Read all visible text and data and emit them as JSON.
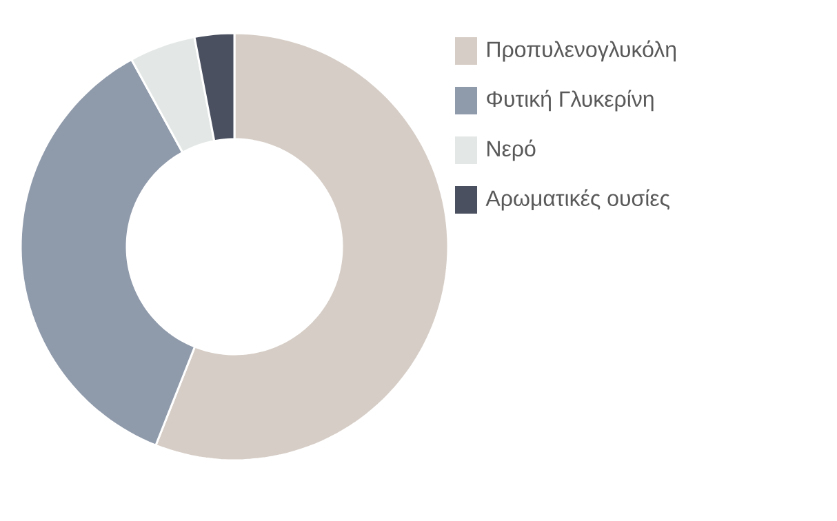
{
  "chart_data": {
    "type": "donut",
    "categories": [
      "Προπυλενογλυκόλη",
      "Φυτική Γλυκερίνη",
      "Νερό",
      "Αρωματικές ουσίες"
    ],
    "values": [
      56,
      36,
      5,
      3
    ],
    "colors": [
      "#d6cdc6",
      "#8f9aab",
      "#e3e8e6",
      "#4a5060"
    ],
    "legend": "top right"
  }
}
